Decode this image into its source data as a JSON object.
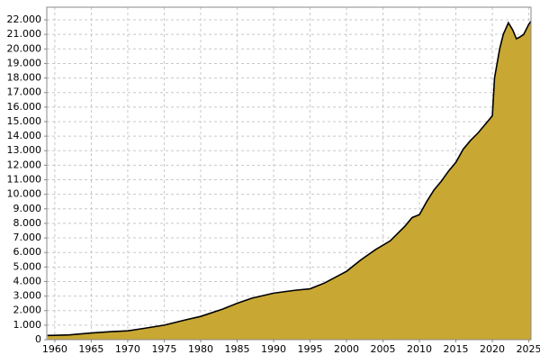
{
  "chart_data": {
    "type": "area",
    "color": "#c8a832",
    "line_color": "#000000",
    "grid": true,
    "x": [
      1959,
      1960,
      1962,
      1965,
      1968,
      1970,
      1972,
      1975,
      1978,
      1980,
      1983,
      1985,
      1987,
      1990,
      1993,
      1995,
      1997,
      2000,
      2002,
      2004,
      2006,
      2008,
      2009,
      2010,
      2011,
      2012,
      2013,
      2014,
      2015,
      2016,
      2017,
      2018,
      2019,
      2020,
      2020.3,
      2021,
      2021.5,
      2022.2,
      2022.8,
      2023.3,
      2023.7,
      2024.3,
      2025,
      2025.3
    ],
    "values": [
      290,
      300,
      330,
      460,
      560,
      610,
      760,
      1000,
      1370,
      1600,
      2100,
      2500,
      2850,
      3200,
      3400,
      3500,
      3900,
      4700,
      5500,
      6200,
      6800,
      7800,
      8400,
      8600,
      9500,
      10300,
      10900,
      11600,
      12200,
      13100,
      13700,
      14200,
      14800,
      15400,
      18000,
      20000,
      21000,
      21800,
      21300,
      20700,
      20800,
      21000,
      21700,
      21900
    ],
    "xlim": [
      1958.9,
      2025.3
    ],
    "xticks": [
      1960,
      1965,
      1970,
      1975,
      1980,
      1985,
      1990,
      1995,
      2000,
      2005,
      2010,
      2015,
      2020,
      2025
    ],
    "ylim": [
      0,
      22870
    ],
    "yticks": [
      0,
      {
        "value": 1000,
        "label": "1.000"
      },
      {
        "value": 2000,
        "label": "2.000"
      },
      {
        "value": 3000,
        "label": "3.000"
      },
      {
        "value": 4000,
        "label": "4.000"
      },
      {
        "value": 5000,
        "label": "5.000"
      },
      {
        "value": 6000,
        "label": "6.000"
      },
      {
        "value": 7000,
        "label": "7.000"
      },
      {
        "value": 8000,
        "label": "8.000"
      },
      {
        "value": 9000,
        "label": "9.000"
      },
      {
        "value": 10000,
        "label": "10.000"
      },
      {
        "value": 11000,
        "label": "11.000"
      },
      {
        "value": 12000,
        "label": "12.000"
      },
      {
        "value": 13000,
        "label": "13.000"
      },
      {
        "value": 14000,
        "label": "14.000"
      },
      {
        "value": 15000,
        "label": "15.000"
      },
      {
        "value": 16000,
        "label": "16.000"
      },
      {
        "value": 17000,
        "label": "17.000"
      },
      {
        "value": 18000,
        "label": "18.000"
      },
      {
        "value": 19000,
        "label": "19.000"
      },
      {
        "value": 20000,
        "label": "20.000"
      },
      {
        "value": 21000,
        "label": "21.000"
      },
      {
        "value": 22000,
        "label": "22.000"
      }
    ]
  }
}
